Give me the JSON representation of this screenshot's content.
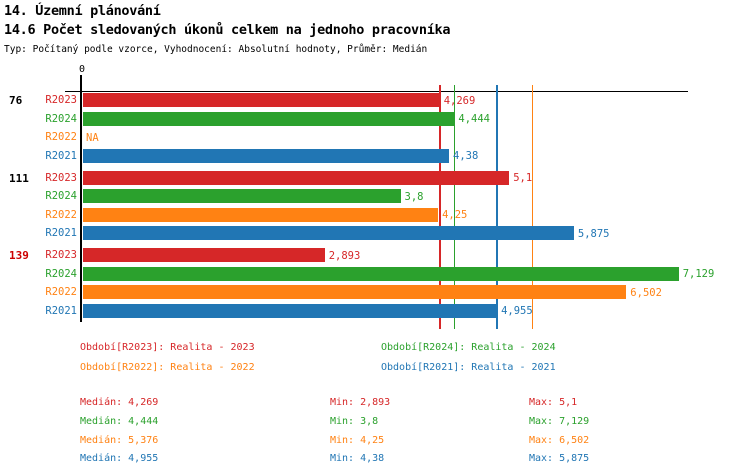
{
  "title": "14. Územní plánování",
  "subtitle": "14.6 Počet sledovaných úkonů celkem na jednoho pracovníka",
  "meta": "Typ: Počítaný podle vzorce, Vyhodnocení: Absolutní hodnoty, Průměr: Medián",
  "colors": {
    "R2023": "#d62728",
    "R2024": "#2ba12d",
    "R2022": "#ff8213",
    "R2021": "#2176b4",
    "axis": "#000000",
    "flagged_group_label": "#cc0000",
    "group_label": "#000000"
  },
  "chart_data": {
    "type": "bar",
    "orientation": "horizontal",
    "axis": {
      "min": 0,
      "max": 7.24,
      "zero_label": "0",
      "grid": false
    },
    "series": [
      "R2023",
      "R2024",
      "R2022",
      "R2021"
    ],
    "na_text": "NA",
    "groups": [
      {
        "label": "76",
        "flagged": false,
        "values": [
          4.269,
          4.444,
          null,
          4.38
        ],
        "display": [
          "4,269",
          "4,444",
          "NA",
          "4,38"
        ]
      },
      {
        "label": "111",
        "flagged": false,
        "values": [
          5.1,
          3.8,
          4.25,
          5.875
        ],
        "display": [
          "5,1",
          "3,8",
          "4,25",
          "5,875"
        ]
      },
      {
        "label": "139",
        "flagged": true,
        "values": [
          2.893,
          7.129,
          6.502,
          4.955
        ],
        "display": [
          "2,893",
          "7,129",
          "6,502",
          "4,955"
        ]
      }
    ],
    "median_lines": {
      "R2023": 4.269,
      "R2024": 4.444,
      "R2022": 5.376,
      "R2021": 4.955
    }
  },
  "legend": {
    "items": [
      {
        "series": "R2023",
        "label": "Období[R2023]: Realita - 2023"
      },
      {
        "series": "R2024",
        "label": "Období[R2024]: Realita - 2024"
      },
      {
        "series": "R2022",
        "label": "Období[R2022]: Realita - 2022"
      },
      {
        "series": "R2021",
        "label": "Období[R2021]: Realita - 2021"
      }
    ]
  },
  "stats": {
    "labels": {
      "median": "Medián",
      "min": "Min",
      "max": "Max"
    },
    "rows": [
      {
        "series": "R2023",
        "median": "4,269",
        "min": "2,893",
        "max": "5,1"
      },
      {
        "series": "R2024",
        "median": "4,444",
        "min": "3,8",
        "max": "7,129"
      },
      {
        "series": "R2022",
        "median": "5,376",
        "min": "4,25",
        "max": "6,502"
      },
      {
        "series": "R2021",
        "median": "4,955",
        "min": "4,38",
        "max": "5,875"
      }
    ]
  }
}
